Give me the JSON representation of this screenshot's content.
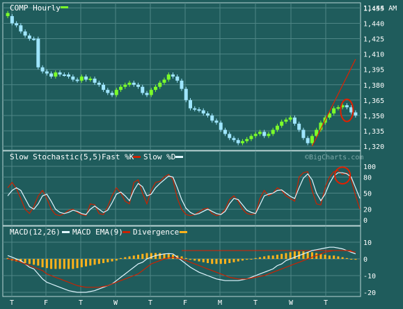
{
  "colors": {
    "background": "#1f5c5c",
    "panel_border": "#b9d3d3",
    "grid": "#4f8686",
    "text": "#ffffff",
    "candle_up": "#7cff2a",
    "candle_down": "#9fe6ff",
    "stoch_fast": "#cc2200",
    "stoch_slow": "#e0f6ff",
    "macd": "#e0f6ff",
    "macd_ema": "#cc2200",
    "divergence": "#ffb21a",
    "annotation": "#e02000"
  },
  "header": {
    "symbol_label": "COMP Hourly",
    "time": "11:44 AM"
  },
  "watermark": "©BigCharts.com",
  "chart_data": [
    {
      "type": "candlestick",
      "title": "COMP Hourly",
      "ylim": [
        1316,
        1460
      ],
      "yticks": [
        1455,
        1440,
        1425,
        1410,
        1395,
        1380,
        1365,
        1350,
        1335,
        1320
      ],
      "ytick_labels": [
        "1,455",
        "1,440",
        "1,425",
        "1,410",
        "1,395",
        "1,380",
        "1,365",
        "1,350",
        "1,335",
        "1,320"
      ],
      "x_tick_labels": [
        "T",
        "F",
        "T",
        "W",
        "T",
        "F",
        "M",
        "T",
        "W",
        "T"
      ],
      "close": [
        1447,
        1440,
        1438,
        1432,
        1428,
        1425,
        1425,
        1397,
        1393,
        1391,
        1388,
        1392,
        1390,
        1390,
        1388,
        1385,
        1384,
        1388,
        1385,
        1386,
        1382,
        1380,
        1375,
        1372,
        1370,
        1375,
        1378,
        1380,
        1382,
        1380,
        1378,
        1372,
        1370,
        1375,
        1378,
        1382,
        1385,
        1390,
        1388,
        1384,
        1376,
        1365,
        1357,
        1356,
        1355,
        1352,
        1350,
        1345,
        1343,
        1336,
        1332,
        1328,
        1326,
        1323,
        1325,
        1327,
        1330,
        1332,
        1334,
        1330,
        1332,
        1336,
        1340,
        1344,
        1346,
        1348,
        1342,
        1336,
        1328,
        1323,
        1330,
        1336,
        1343,
        1348,
        1352,
        1357,
        1358,
        1360,
        1358,
        1353,
        1350
      ],
      "up_down": [
        1,
        -1,
        -1,
        -1,
        -1,
        -1,
        -1,
        -1,
        -1,
        -1,
        -1,
        1,
        -1,
        -1,
        -1,
        -1,
        -1,
        1,
        -1,
        1,
        -1,
        -1,
        -1,
        -1,
        -1,
        1,
        1,
        1,
        1,
        -1,
        -1,
        -1,
        -1,
        1,
        1,
        1,
        1,
        1,
        -1,
        -1,
        -1,
        -1,
        -1,
        -1,
        -1,
        -1,
        -1,
        -1,
        -1,
        -1,
        -1,
        -1,
        -1,
        -1,
        1,
        1,
        1,
        1,
        1,
        -1,
        1,
        1,
        1,
        1,
        1,
        1,
        -1,
        -1,
        -1,
        -1,
        1,
        1,
        1,
        1,
        1,
        1,
        1,
        1,
        -1,
        -1,
        -1
      ],
      "trendline": {
        "x": [
          70,
          80
        ],
        "y": [
          1320,
          1405
        ]
      },
      "annotation": "circle around latest bars"
    },
    {
      "type": "line",
      "title": "Slow Stochastic(5,5)",
      "ylim": [
        0,
        100
      ],
      "yticks": [
        100,
        80,
        50,
        20,
        0
      ],
      "series": [
        {
          "name": "Fast %K",
          "values": [
            60,
            70,
            58,
            40,
            20,
            12,
            25,
            45,
            55,
            40,
            20,
            10,
            8,
            12,
            18,
            20,
            14,
            10,
            8,
            30,
            28,
            12,
            10,
            25,
            45,
            60,
            50,
            35,
            30,
            70,
            75,
            50,
            30,
            55,
            70,
            72,
            80,
            85,
            75,
            40,
            20,
            10,
            8,
            10,
            15,
            20,
            22,
            12,
            8,
            10,
            20,
            38,
            45,
            35,
            20,
            12,
            10,
            12,
            40,
            55,
            45,
            50,
            60,
            55,
            45,
            40,
            35,
            80,
            88,
            90,
            55,
            30,
            28,
            60,
            80,
            90,
            92,
            85,
            88,
            75,
            45,
            20
          ]
        },
        {
          "name": "Slow %D",
          "values": [
            45,
            55,
            60,
            55,
            40,
            25,
            20,
            30,
            45,
            48,
            35,
            20,
            14,
            12,
            14,
            18,
            16,
            12,
            10,
            20,
            26,
            20,
            14,
            18,
            32,
            48,
            52,
            45,
            36,
            55,
            68,
            62,
            45,
            48,
            60,
            68,
            75,
            82,
            80,
            60,
            38,
            22,
            14,
            10,
            12,
            16,
            20,
            16,
            12,
            10,
            16,
            30,
            40,
            38,
            28,
            18,
            14,
            12,
            28,
            45,
            48,
            50,
            55,
            56,
            50,
            44,
            40,
            60,
            78,
            86,
            75,
            50,
            36,
            48,
            68,
            82,
            88,
            88,
            86,
            80,
            60,
            40
          ]
        }
      ]
    },
    {
      "type": "mixed",
      "title": "MACD(12,26)",
      "ylim": [
        -22,
        12
      ],
      "yticks": [
        10,
        0,
        -10,
        -20
      ],
      "series": [
        {
          "name": "MACD",
          "values": [
            2,
            1,
            0,
            -1,
            -3,
            -5,
            -6,
            -9,
            -12,
            -14,
            -15,
            -16,
            -17,
            -18,
            -19,
            -19.5,
            -20,
            -20,
            -20,
            -19.5,
            -19,
            -18,
            -17,
            -16,
            -15,
            -13,
            -11,
            -9,
            -7,
            -5,
            -3,
            -2,
            0,
            1,
            2,
            2.5,
            3,
            3.2,
            3,
            1,
            -1,
            -3,
            -5,
            -6.5,
            -8,
            -9,
            -10,
            -11,
            -12,
            -12.5,
            -13,
            -13,
            -13,
            -13,
            -12.5,
            -12,
            -11,
            -10,
            -9,
            -8,
            -7,
            -6,
            -4,
            -3,
            -1,
            0,
            1,
            2,
            3,
            4,
            5,
            5.5,
            6,
            6.5,
            7,
            7,
            6.5,
            6,
            5,
            4,
            3
          ]
        },
        {
          "name": "MACD EMA(9)",
          "values": [
            0,
            -0.5,
            -1,
            -2,
            -3,
            -4,
            -5,
            -6,
            -7,
            -9,
            -10,
            -11,
            -12,
            -13,
            -14,
            -15,
            -16,
            -16.5,
            -17,
            -17,
            -17,
            -17,
            -16.5,
            -16,
            -15,
            -14,
            -13,
            -12,
            -11,
            -10,
            -9,
            -7,
            -5,
            -3,
            -2,
            -1,
            0,
            0.5,
            1,
            0.5,
            0,
            -1,
            -2,
            -3,
            -4,
            -5,
            -6,
            -7,
            -8,
            -9,
            -10,
            -11,
            -11.5,
            -12,
            -12,
            -12,
            -11.5,
            -11,
            -10.5,
            -10,
            -9,
            -8,
            -7,
            -6,
            -5,
            -4,
            -3,
            -2,
            -1,
            0,
            1,
            2,
            3,
            4,
            4.5,
            5,
            5,
            5,
            5,
            4.5,
            4
          ]
        },
        {
          "name": "Divergence",
          "values": [
            0.5,
            -1,
            -1.5,
            -2,
            -2.5,
            -3,
            -3.5,
            -4,
            -5,
            -5.5,
            -6,
            -6,
            -6,
            -6,
            -6,
            -6,
            -5.5,
            -5,
            -4.5,
            -4,
            -3.5,
            -3,
            -2.5,
            -2,
            -1.5,
            -1,
            0.5,
            1,
            1.5,
            2,
            2.5,
            3,
            3.5,
            3.5,
            3.5,
            3.5,
            3,
            3,
            2.5,
            2,
            1.5,
            0.5,
            -0.5,
            -1,
            -1.5,
            -2,
            -2.5,
            -3,
            -3,
            -3,
            -3,
            -2.5,
            -2,
            -1.5,
            -1,
            -0.5,
            0,
            0.5,
            1,
            1.5,
            2,
            2,
            2.5,
            3,
            3.5,
            4,
            4.5,
            4.5,
            4.5,
            4,
            4,
            3.5,
            3,
            2.5,
            2,
            2,
            1.5,
            1,
            0.5,
            0,
            -0.5
          ]
        }
      ],
      "reference_line": 5
    }
  ]
}
